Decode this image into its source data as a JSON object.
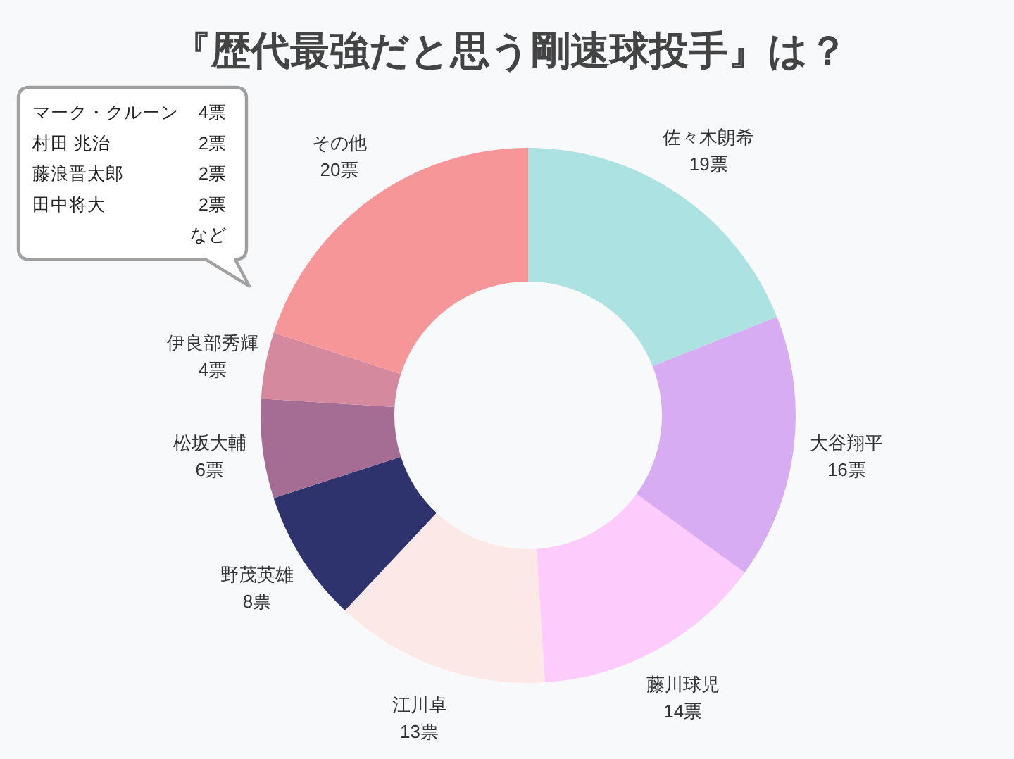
{
  "chart_data": {
    "type": "donut",
    "title": "『歴代最強だと思う剛速球投手』は？",
    "categories": [
      "佐々木朗希",
      "大谷翔平",
      "藤川球児",
      "江川卓",
      "野茂英雄",
      "松坂大輔",
      "伊良部秀輝",
      "その他"
    ],
    "values": [
      19,
      16,
      14,
      13,
      8,
      6,
      4,
      20
    ],
    "value_labels": [
      "19票",
      "16票",
      "14票",
      "13票",
      "8票",
      "6票",
      "4票",
      "20票"
    ],
    "colors": [
      "#ace2e1",
      "#d8acf3",
      "#fdcbfc",
      "#fde8e8",
      "#2f336d",
      "#a56d94",
      "#d5899f",
      "#f69698"
    ],
    "annotations": [
      "マーク・クルーン 4票",
      "村田 兆治 2票",
      "藤浪晋太郎 2票",
      "田中将大 2票",
      "など"
    ]
  }
}
